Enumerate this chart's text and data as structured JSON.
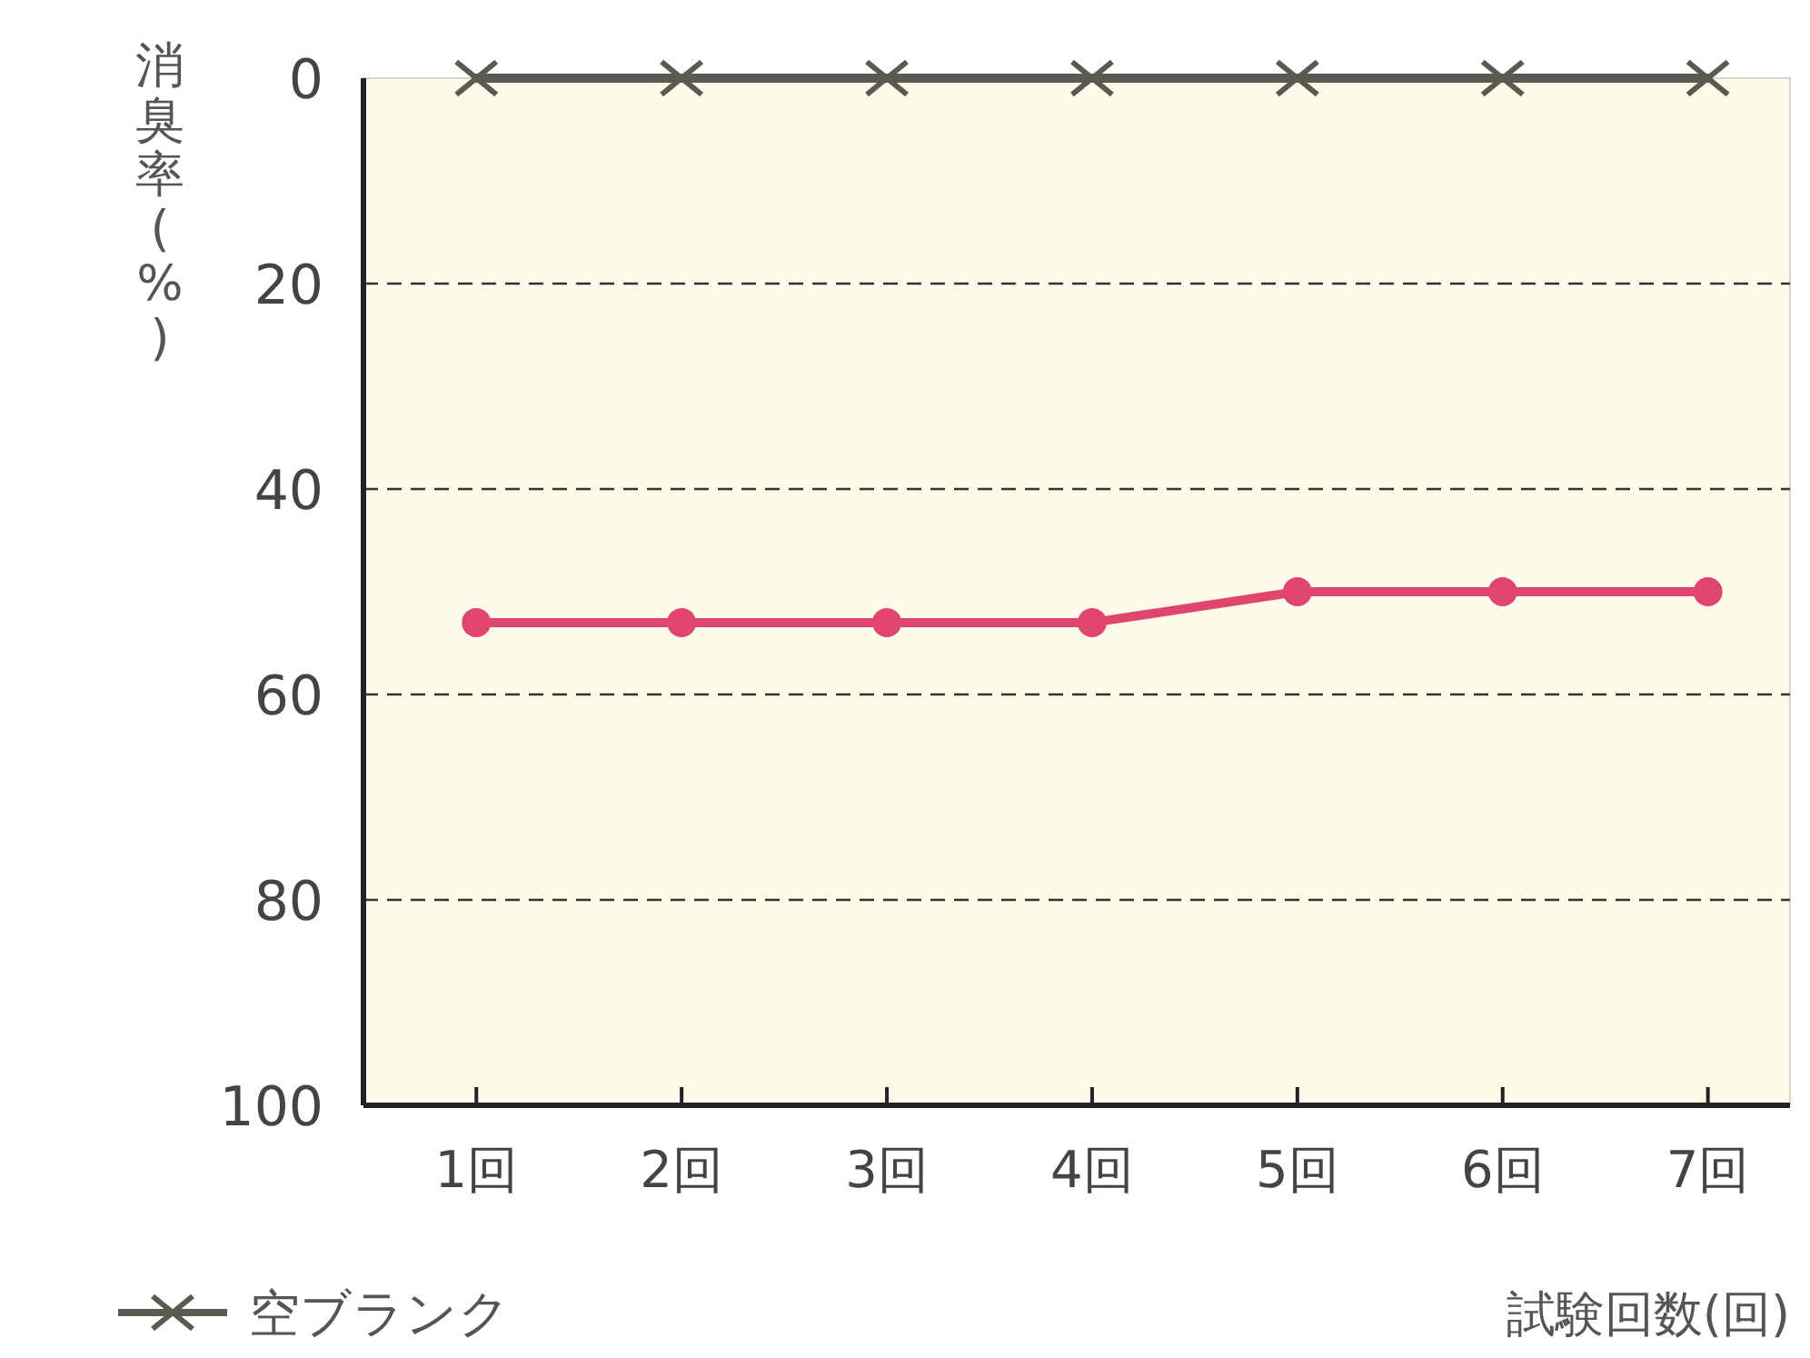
{
  "chart_data": {
    "type": "line",
    "ylabel": "消臭率(%)",
    "xlabel": "試験回数(回)",
    "categories": [
      "1回",
      "2回",
      "3回",
      "4回",
      "5回",
      "6回",
      "7回"
    ],
    "ylim": [
      100,
      0
    ],
    "yticks": [
      0,
      20,
      40,
      60,
      80,
      100
    ],
    "grid": "y",
    "legend": "bottom left",
    "series": [
      {
        "color": "#e0456e",
        "marker": "circle",
        "values": [
          53,
          53,
          53,
          53,
          50,
          50,
          50
        ]
      },
      {
        "name": "空ブランク",
        "color": "#5a5a52",
        "marker": "cross",
        "values": [
          0,
          0,
          0,
          0,
          0,
          0,
          0
        ]
      }
    ]
  }
}
